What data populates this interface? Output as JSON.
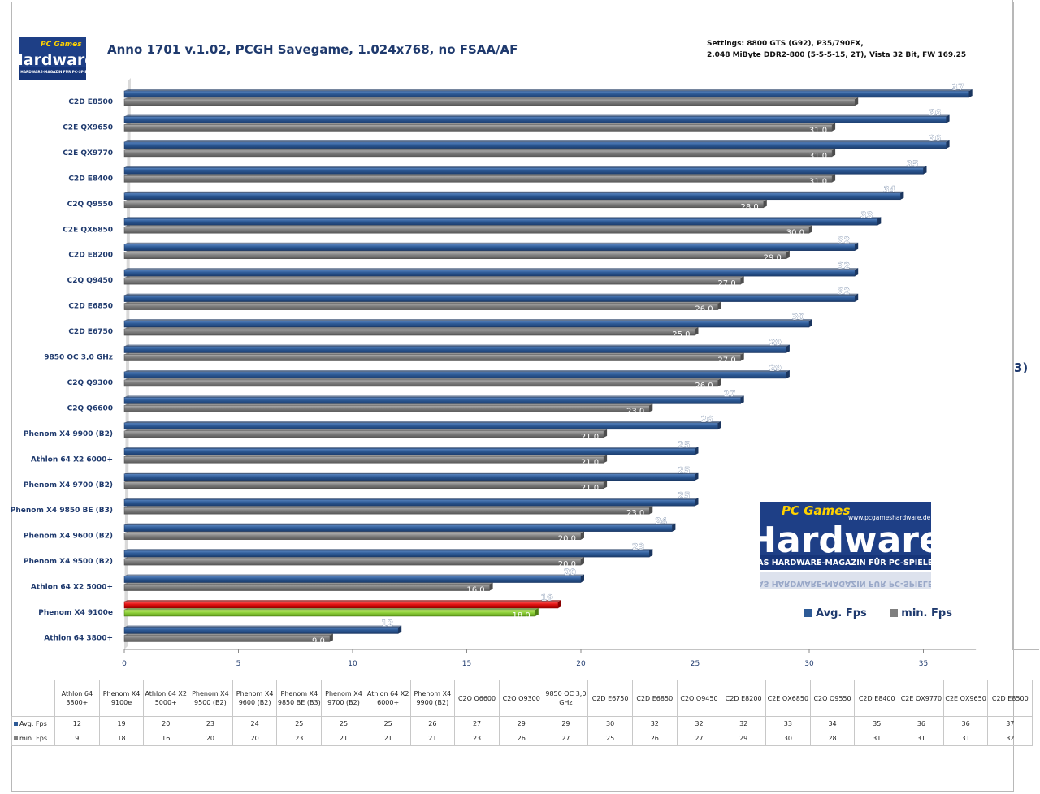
{
  "title": "Anno 1701 v.1.02, PCGH Savegame, 1.024x768, no FSAA/AF",
  "settings_line1": "Settings: 8800 GTS (G92), P35/790FX,",
  "settings_line2": "2.048 MiByte DDR2-800 (5-5-5-15, 2T), Vista 32 Bit, FW 169.25",
  "side_mark": "3)",
  "logo": {
    "brand_small": "PC Games",
    "brand_big": "Hardware",
    "tagline": "DAS HARDWARE-MAGAZIN FÜR PC-SPIELER",
    "url": "www.pcgameshardware.de"
  },
  "colors": {
    "avg": "#2d5a96",
    "min": "#7f7f7f",
    "highlight_avg": "#e01010",
    "highlight_min": "#8fd13a",
    "text": "#1f3a6e"
  },
  "chart_data": {
    "type": "bar",
    "orientation": "horizontal",
    "xlim": [
      0,
      35
    ],
    "xticks": [
      0,
      5,
      10,
      15,
      20,
      25,
      30,
      35
    ],
    "categories": [
      "C2D E8500",
      "C2E QX9650",
      "C2E QX9770",
      "C2D E8400",
      "C2Q Q9550",
      "C2E QX6850",
      "C2D E8200",
      "C2Q Q9450",
      "C2D E6850",
      "C2D E6750",
      "9850  OC 3,0 GHz",
      "C2Q Q9300",
      "C2Q Q6600",
      "Phenom X4 9900  (B2)",
      "Athlon 64  X2 6000+",
      "Phenom X4 9700  (B2)",
      "Phenom X4 9850  BE (B3)",
      "Phenom X4 9600  (B2)",
      "Phenom X4 9500  (B2)",
      "Athlon 64 X2 5000+",
      "Phenom X4 9100e",
      "Athlon 64 3800+"
    ],
    "series": [
      {
        "name": "Avg. Fps",
        "values": [
          37,
          36,
          36,
          35,
          34,
          33,
          32,
          32,
          32,
          30,
          29,
          29,
          27,
          26,
          25,
          25,
          25,
          24,
          23,
          20,
          19,
          12
        ],
        "labels": [
          "37",
          "36",
          "36",
          "35",
          "34",
          "33",
          "32",
          "32",
          "32",
          "30",
          "29",
          "29",
          "27",
          "26",
          "25",
          "25",
          "25",
          "24",
          "23",
          "20",
          "19",
          "12"
        ]
      },
      {
        "name": "min. Fps",
        "values": [
          32,
          31,
          31,
          31,
          28,
          30,
          29,
          27,
          26,
          25,
          27,
          26,
          23,
          21,
          21,
          21,
          23,
          20,
          20,
          16,
          18,
          9
        ],
        "labels": [
          "",
          "31,0",
          "31,0",
          "31,0",
          "28,0",
          "30,0",
          "29,0",
          "27,0",
          "26,0",
          "25,0",
          "27,0",
          "26,0",
          "23,0",
          "21,0",
          "21,0",
          "21,0",
          "23,0",
          "20,0",
          "20,0",
          "16,0",
          "18,0",
          "9,0"
        ]
      }
    ],
    "highlight_index": 20,
    "legend_position": "bottom-right"
  },
  "table": {
    "columns": [
      "Athlon 64 3800+",
      "Phenom X4 9100e",
      "Athlon 64 X2 5000+",
      "Phenom X4 9500 (B2)",
      "Phenom X4 9600 (B2)",
      "Phenom X4 9850 BE (B3)",
      "Phenom X4 9700 (B2)",
      "Athlon 64 X2 6000+",
      "Phenom X4 9900 (B2)",
      "C2Q Q6600",
      "C2Q Q9300",
      "9850 OC 3,0 GHz",
      "C2D E6750",
      "C2D E6850",
      "C2Q Q9450",
      "C2D E8200",
      "C2E QX6850",
      "C2Q Q9550",
      "C2D E8400",
      "C2E QX9770",
      "C2E QX9650",
      "C2D E8500"
    ],
    "rows": [
      {
        "label": "Avg. Fps",
        "values": [
          "12",
          "19",
          "20",
          "23",
          "24",
          "25",
          "25",
          "25",
          "26",
          "27",
          "29",
          "29",
          "30",
          "32",
          "32",
          "32",
          "33",
          "34",
          "35",
          "36",
          "36",
          "37"
        ]
      },
      {
        "label": "min. Fps",
        "values": [
          "9",
          "18",
          "16",
          "20",
          "20",
          "23",
          "21",
          "21",
          "21",
          "23",
          "26",
          "27",
          "25",
          "26",
          "27",
          "29",
          "30",
          "28",
          "31",
          "31",
          "31",
          "32"
        ]
      }
    ]
  }
}
